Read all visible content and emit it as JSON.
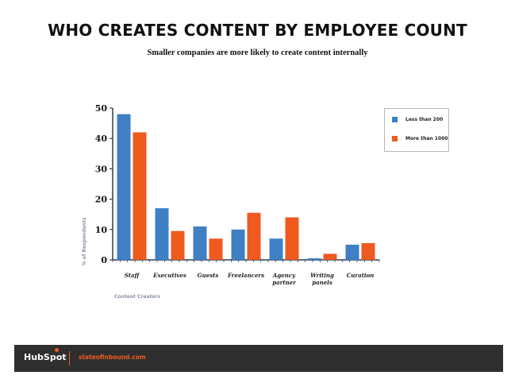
{
  "title": "WHO CREATES CONTENT BY EMPLOYEE COUNT",
  "subtitle": "Smaller companies are more likely to create content internally",
  "chart_data": {
    "type": "bar",
    "xlabel": "Content Creators",
    "ylabel": "% of Respondents",
    "ylim": [
      0,
      50
    ],
    "yticks": [
      0,
      10,
      20,
      30,
      40,
      50
    ],
    "grid": false,
    "legend_position": "top-right",
    "categories": [
      [
        "Staff"
      ],
      [
        "Executives"
      ],
      [
        "Guests"
      ],
      [
        "Freelancers"
      ],
      [
        "Agency",
        "partner"
      ],
      [
        "Writing",
        "panels"
      ],
      [
        "Curation"
      ]
    ],
    "series": [
      {
        "name": "Less than 200",
        "color": "#3f7fc4",
        "values": [
          48,
          17,
          11,
          10,
          7,
          0.5,
          5
        ]
      },
      {
        "name": "More than 1000",
        "color": "#ef5a1e",
        "values": [
          42,
          9.5,
          7,
          15.5,
          14,
          2,
          5.5
        ]
      }
    ]
  },
  "footer": {
    "brand": "HubSpot",
    "url": "stateofinbound.com"
  }
}
